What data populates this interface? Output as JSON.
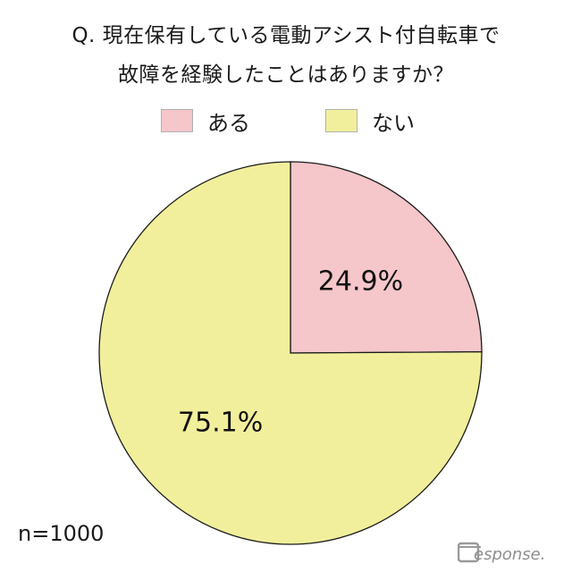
{
  "chart_data": {
    "type": "pie",
    "title": "Q. 現在保有している電動アシスト付自転車で",
    "subtitle": "故障を経験したことはありますか？",
    "categories": [
      "ある",
      "ない"
    ],
    "values": [
      24.9,
      75.1
    ],
    "data_labels": [
      "24.9%",
      "75.1%"
    ],
    "colors": [
      "#f5c6ca",
      "#f2ef9c"
    ],
    "legend_position": "top",
    "start_angle": "12 o'clock",
    "direction": "clockwise",
    "note": "n=1000"
  },
  "logo": {
    "text": "Response."
  }
}
